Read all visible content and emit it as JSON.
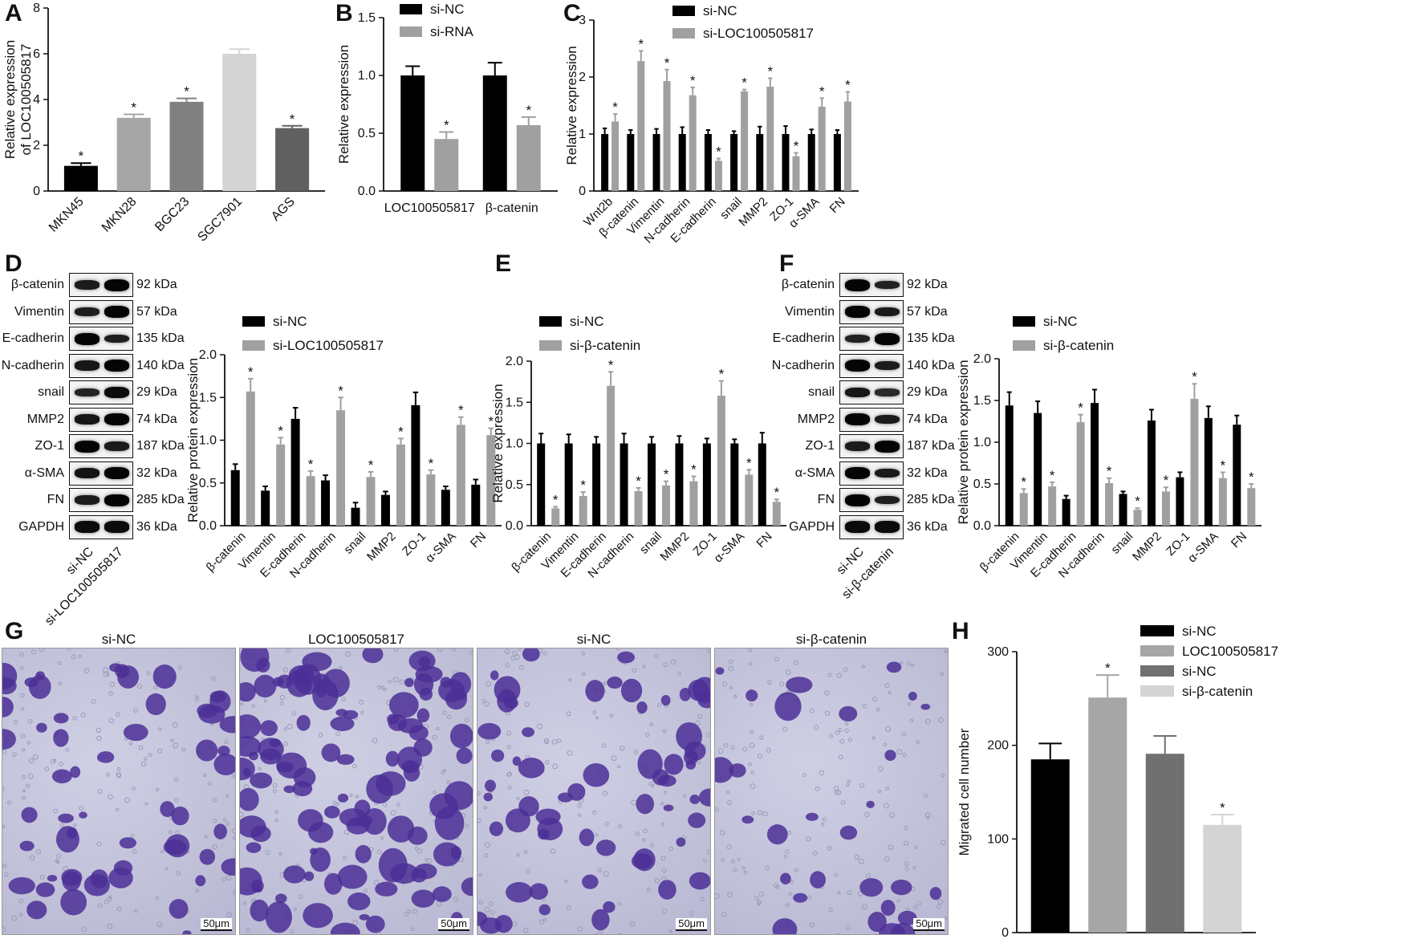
{
  "panel_labels": [
    "A",
    "B",
    "C",
    "D",
    "E",
    "F",
    "G",
    "H"
  ],
  "colors": {
    "black": "#000000",
    "gray_mid": "#999999",
    "gray_dark": "#707070",
    "gray_light": "#d4d4d4",
    "gray_med2": "#a6a6a6",
    "violet": "#5b3aa6"
  },
  "chart_data": [
    {
      "id": "A",
      "type": "bar",
      "ylabel": "Relative expression\nof LOC100505817",
      "ylim": [
        0,
        8
      ],
      "yticks": [
        0,
        2,
        4,
        6,
        8
      ],
      "categories": [
        "MKN45",
        "MKN28",
        "BGC23",
        "SGC7901",
        "AGS"
      ],
      "values": [
        1.1,
        3.2,
        3.9,
        6.0,
        2.75
      ],
      "errors": [
        0.12,
        0.15,
        0.15,
        0.2,
        0.1
      ],
      "star": [
        true,
        true,
        true,
        false,
        true
      ],
      "colors": [
        "#000000",
        "#a6a6a6",
        "#808080",
        "#d4d4d4",
        "#606060"
      ]
    },
    {
      "id": "B",
      "type": "bar",
      "ylabel": "Relative expression",
      "ylim": [
        0,
        1.5
      ],
      "yticks": [
        "0.0",
        "0.5",
        "1.0",
        "1.5"
      ],
      "categories": [
        "LOC100505817",
        "β-catenin"
      ],
      "series": [
        {
          "name": "si-NC",
          "values": [
            1.0,
            1.0
          ],
          "errors": [
            0.08,
            0.11
          ],
          "star": [
            false,
            false
          ]
        },
        {
          "name": "si-RNA",
          "values": [
            0.45,
            0.57
          ],
          "errors": [
            0.06,
            0.07
          ],
          "star": [
            true,
            true
          ]
        }
      ]
    },
    {
      "id": "C",
      "type": "bar",
      "ylabel": "Relative expression",
      "ylim": [
        0,
        3
      ],
      "yticks": [
        0,
        1,
        2,
        3
      ],
      "categories": [
        "Wnt2b",
        "β-catenin",
        "Vimentin",
        "N-cadherin",
        "E-cadherin",
        "snail",
        "MMP2",
        "ZO-1",
        "α-SMA",
        "FN"
      ],
      "series": [
        {
          "name": "si-NC",
          "values": [
            1,
            1,
            1,
            1,
            1,
            1,
            1,
            1,
            1,
            1
          ],
          "errors": [
            0.1,
            0.07,
            0.09,
            0.12,
            0.07,
            0.05,
            0.13,
            0.14,
            0.08,
            0.07
          ],
          "star": [
            false,
            false,
            false,
            false,
            false,
            false,
            false,
            false,
            false,
            false
          ]
        },
        {
          "name": "si-LOC100505817",
          "values": [
            1.22,
            2.28,
            1.93,
            1.68,
            0.53,
            1.75,
            1.83,
            0.61,
            1.48,
            1.57
          ],
          "errors": [
            0.13,
            0.18,
            0.2,
            0.14,
            0.04,
            0.03,
            0.15,
            0.06,
            0.15,
            0.17
          ],
          "star": [
            true,
            true,
            true,
            true,
            true,
            true,
            true,
            true,
            true,
            true
          ]
        }
      ]
    },
    {
      "id": "D",
      "type": "bar",
      "ylabel": "Relative protein expression",
      "ylim": [
        0,
        2
      ],
      "yticks": [
        "0.0",
        "0.5",
        "1.0",
        "1.5",
        "2.0"
      ],
      "categories": [
        "β-catenin",
        "Vimentin",
        "E-cadherin",
        "N-cadherin",
        "snail",
        "MMP2",
        "ZO-1",
        "α-SMA",
        "FN"
      ],
      "series": [
        {
          "name": "si-NC",
          "values": [
            0.65,
            0.41,
            1.25,
            0.53,
            0.21,
            0.36,
            1.41,
            0.42,
            0.48
          ],
          "errors": [
            0.07,
            0.05,
            0.13,
            0.06,
            0.06,
            0.04,
            0.15,
            0.04,
            0.06
          ],
          "star": [
            false,
            false,
            false,
            false,
            false,
            false,
            false,
            false,
            false
          ]
        },
        {
          "name": "si-LOC100505817",
          "values": [
            1.57,
            0.95,
            0.58,
            1.35,
            0.57,
            0.95,
            0.6,
            1.18,
            1.06
          ],
          "errors": [
            0.15,
            0.08,
            0.06,
            0.15,
            0.06,
            0.07,
            0.05,
            0.09,
            0.08
          ],
          "star": [
            true,
            true,
            true,
            true,
            true,
            true,
            true,
            true,
            true
          ]
        }
      ]
    },
    {
      "id": "E",
      "type": "bar",
      "ylabel": "Relative expression",
      "ylim": [
        0,
        2
      ],
      "yticks": [
        "0.0",
        "0.5",
        "1.0",
        "1.5",
        "2.0"
      ],
      "categories": [
        "β-catenin",
        "Vimentin",
        "E-cadherin",
        "N-cadherin",
        "snail",
        "MMP2",
        "ZO-1",
        "α-SMA",
        "FN"
      ],
      "series": [
        {
          "name": "si-NC",
          "values": [
            1,
            1,
            1,
            1,
            1,
            1,
            1,
            1,
            1
          ],
          "errors": [
            0.12,
            0.11,
            0.08,
            0.12,
            0.08,
            0.09,
            0.06,
            0.05,
            0.13
          ],
          "star": [
            false,
            false,
            false,
            false,
            false,
            false,
            false,
            false,
            false
          ]
        },
        {
          "name": "si-β-catenin",
          "values": [
            0.21,
            0.36,
            1.7,
            0.42,
            0.49,
            0.54,
            1.58,
            0.62,
            0.29
          ],
          "errors": [
            0.02,
            0.05,
            0.17,
            0.04,
            0.05,
            0.06,
            0.18,
            0.06,
            0.03
          ],
          "star": [
            true,
            true,
            true,
            true,
            true,
            true,
            true,
            true,
            true
          ]
        }
      ]
    },
    {
      "id": "F",
      "type": "bar",
      "ylabel": "Relative protein expression",
      "ylim": [
        0,
        2
      ],
      "yticks": [
        "0.0",
        "0.5",
        "1.0",
        "1.5",
        "2.0"
      ],
      "categories": [
        "β-catenin",
        "Vimentin",
        "E-cadherin",
        "N-cadherin",
        "snail",
        "MMP2",
        "ZO-1",
        "α-SMA",
        "FN"
      ],
      "series": [
        {
          "name": "si-NC",
          "values": [
            1.44,
            1.35,
            0.32,
            1.47,
            0.38,
            1.26,
            0.58,
            1.29,
            1.21
          ],
          "errors": [
            0.16,
            0.14,
            0.04,
            0.16,
            0.03,
            0.13,
            0.06,
            0.14,
            0.11
          ],
          "star": [
            false,
            false,
            false,
            false,
            false,
            false,
            false,
            false,
            false
          ]
        },
        {
          "name": "si-β-catenin",
          "values": [
            0.39,
            0.47,
            1.24,
            0.51,
            0.19,
            0.41,
            1.52,
            0.57,
            0.45
          ],
          "errors": [
            0.05,
            0.05,
            0.09,
            0.06,
            0.02,
            0.05,
            0.18,
            0.07,
            0.05
          ],
          "star": [
            true,
            true,
            true,
            true,
            true,
            true,
            true,
            true,
            true
          ]
        }
      ]
    },
    {
      "id": "H",
      "type": "bar",
      "ylabel": "Migrated cell number",
      "ylim": [
        0,
        300
      ],
      "yticks": [
        0,
        100,
        200,
        300
      ],
      "categories": [
        "si-NC",
        "LOC100505817",
        "si-NC",
        "si-β-catenin"
      ],
      "values": [
        185,
        251,
        191,
        115
      ],
      "errors": [
        17,
        24,
        19,
        11
      ],
      "star": [
        false,
        true,
        false,
        true
      ],
      "colors": [
        "#000000",
        "#a6a6a6",
        "#707070",
        "#d4d4d4"
      ],
      "legend": [
        "si-NC",
        "LOC100505817",
        "si-NC",
        "si-β-catenin"
      ]
    }
  ],
  "blot_D": {
    "proteins": [
      "β-catenin",
      "Vimentin",
      "E-cadherin",
      "N-cadherin",
      "snail",
      "MMP2",
      "ZO-1",
      "α-SMA",
      "FN",
      "GAPDH"
    ],
    "kda": [
      "92 kDa",
      "57 kDa",
      "135 kDa",
      "140 kDa",
      "29 kDa",
      "74 kDa",
      "187 kDa",
      "32 kDa",
      "285 kDa",
      "36 kDa"
    ],
    "lanes": [
      "si-NC",
      "si-LOC100505817"
    ]
  },
  "blot_F": {
    "proteins": [
      "β-catenin",
      "Vimentin",
      "E-cadherin",
      "N-cadherin",
      "snail",
      "MMP2",
      "ZO-1",
      "α-SMA",
      "FN",
      "GAPDH"
    ],
    "kda": [
      "92 kDa",
      "57 kDa",
      "135 kDa",
      "140 kDa",
      "29 kDa",
      "74 kDa",
      "187 kDa",
      "32 kDa",
      "285 kDa",
      "36 kDa"
    ],
    "lanes": [
      "si-NC",
      "si-β-catenin"
    ]
  },
  "micrographs": {
    "titles": [
      "si-NC",
      "LOC100505817",
      "si-NC",
      "si-β-catenin"
    ],
    "scale": "50μm"
  },
  "star_symbol": "*"
}
